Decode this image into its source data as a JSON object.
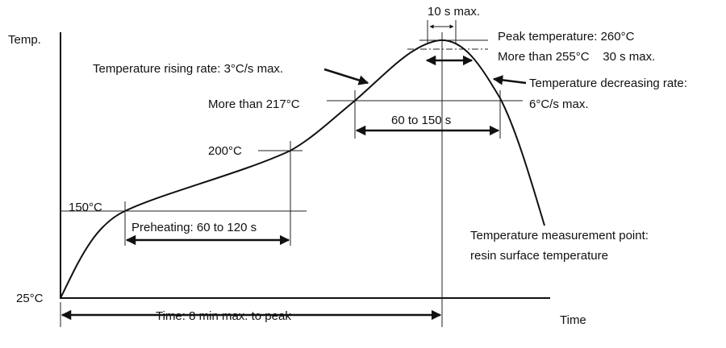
{
  "axes": {
    "y_label": "Temp.",
    "x_label": "Time"
  },
  "temperature_labels": [
    "25°C",
    "150°C",
    "200°C",
    "More than 217°C"
  ],
  "peak": {
    "window": "10 s max.",
    "temperature": "Peak temperature: 260°C",
    "hold": "More than 255°C    30 s max."
  },
  "rates": {
    "rising": "Temperature rising rate: 3°C/s max.",
    "decreasing": [
      "Temperature decreasing rate:",
      "6°C/s max."
    ]
  },
  "durations": {
    "above_217": "60 to 150 s",
    "preheating": "Preheating: 60 to 120 s",
    "total": "Time: 8 min max. to peak"
  },
  "measurement": [
    "Temperature measurement point:",
    "resin surface temperature"
  ]
}
